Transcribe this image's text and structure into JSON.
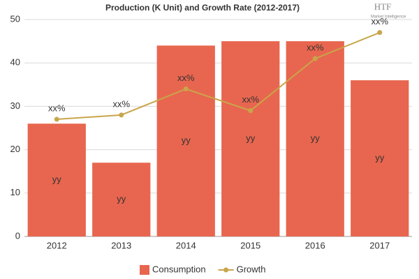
{
  "chart_data": {
    "type": "bar",
    "title": "Production (K Unit) and Growth Rate (2012-2017)",
    "logo": "HTF",
    "logo_tagline": "Market Intelligence",
    "categories": [
      "2012",
      "2013",
      "2014",
      "2015",
      "2016",
      "2017"
    ],
    "series": [
      {
        "name": "Consumption",
        "type": "bar",
        "color": "#e8664f",
        "values": [
          26,
          17,
          44,
          45,
          45,
          36
        ],
        "value_labels": [
          "yy",
          "yy",
          "yy",
          "yy",
          "yy",
          "yy"
        ]
      },
      {
        "name": "Growth",
        "type": "line",
        "color": "#c9a54a",
        "values": [
          27,
          28,
          34,
          29,
          41,
          47
        ],
        "value_labels": [
          "xx%",
          "xx%",
          "xx%",
          "xx%",
          "xx%",
          "xx%"
        ]
      }
    ],
    "ylim": [
      0,
      50
    ],
    "yticks": [
      0,
      10,
      20,
      30,
      40,
      50
    ],
    "grid": true,
    "legend": "bottom"
  }
}
